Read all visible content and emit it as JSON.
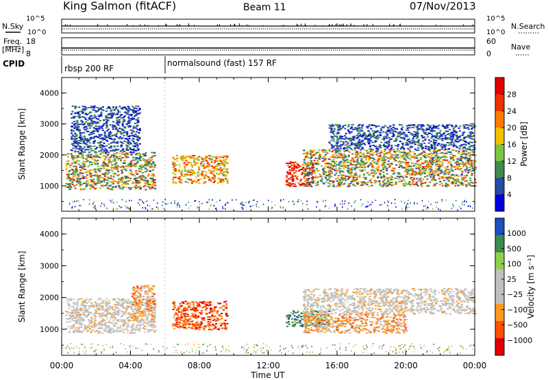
{
  "header": {
    "station": "King Salmon (fitACF)",
    "beam": "Beam 11",
    "date": "07/Nov/2013"
  },
  "status_panels": {
    "nsky_label": "N.Sky",
    "nsky_ticks": [
      "10^5",
      "10^0"
    ],
    "nsearch_label": "N.Search",
    "nsearch_ticks": [
      "10^5",
      "10^0"
    ],
    "freq_label": "Freq.",
    "freq_unit": "[MHz]",
    "freq_ticks": [
      "18",
      "8"
    ],
    "nave_label": "Nave",
    "nave_ticks": [
      "60",
      "0"
    ],
    "cpid_label": "CPID",
    "cpid_segments": [
      {
        "label": "rbsp 200 RF",
        "start_h": 0.0,
        "end_h": 6.0
      },
      {
        "label": "normalsound (fast) 157 RF",
        "start_h": 6.0,
        "end_h": 24.0
      }
    ]
  },
  "chart_data": [
    {
      "type": "heatmap",
      "panel": "power",
      "ylabel": "Slant Range [km]",
      "ylim": [
        180,
        4500
      ],
      "yticks": [
        1000,
        2000,
        3000,
        4000
      ],
      "xlim": [
        0,
        24
      ],
      "colorbar": {
        "label": "Power [dB]",
        "ticks": [
          "28",
          "24",
          "20",
          "16",
          "12",
          "8",
          "4"
        ],
        "colors": [
          "#e00000",
          "#f03000",
          "#ff7a00",
          "#f5c000",
          "#7fc442",
          "#3d8b4f",
          "#2a4aa0",
          "#0000e0"
        ]
      },
      "bands": [
        {
          "t0": 0.2,
          "t1": 5.4,
          "r0": 900,
          "r1": 2100,
          "level": "green-orange"
        },
        {
          "t0": 0.5,
          "t1": 4.5,
          "r0": 2100,
          "r1": 3600,
          "level": "blue-scatter"
        },
        {
          "t0": 6.4,
          "t1": 9.6,
          "r0": 1100,
          "r1": 2000,
          "level": "orange"
        },
        {
          "t0": 13.0,
          "t1": 14.6,
          "r0": 1000,
          "r1": 1800,
          "level": "red"
        },
        {
          "t0": 14.0,
          "t1": 24.0,
          "r0": 1000,
          "r1": 2200,
          "level": "green-orange"
        },
        {
          "t0": 15.5,
          "t1": 24.0,
          "r0": 2200,
          "r1": 3000,
          "level": "blue-scatter"
        }
      ]
    },
    {
      "type": "heatmap",
      "panel": "velocity",
      "ylabel": "Slant Range [km]",
      "ylim": [
        180,
        4500
      ],
      "yticks": [
        1000,
        2000,
        3000,
        4000
      ],
      "xlim": [
        0,
        24
      ],
      "colorbar": {
        "label": "Velocity [m s⁻¹]",
        "ticks": [
          "1000",
          "500",
          "100",
          "25",
          "−25",
          "−100",
          "−500",
          "−1000"
        ],
        "colors": [
          "#2050c0",
          "#3d8b4f",
          "#8fcf4f",
          "#c0c0c0",
          "#c0c0c0",
          "#ff9a20",
          "#ff5000",
          "#e00000"
        ]
      },
      "bands": [
        {
          "t0": 0.2,
          "t1": 5.4,
          "r0": 900,
          "r1": 2000,
          "level": "grey"
        },
        {
          "t0": 4.0,
          "t1": 5.4,
          "r0": 1300,
          "r1": 2400,
          "level": "orange"
        },
        {
          "t0": 6.4,
          "t1": 9.6,
          "r0": 1000,
          "r1": 1900,
          "level": "red-orange"
        },
        {
          "t0": 13.0,
          "t1": 15.5,
          "r0": 1100,
          "r1": 1600,
          "level": "green"
        },
        {
          "t0": 14.0,
          "t1": 20.0,
          "r0": 900,
          "r1": 1500,
          "level": "orange"
        },
        {
          "t0": 14.0,
          "t1": 24.0,
          "r0": 1500,
          "r1": 2300,
          "level": "grey"
        }
      ]
    }
  ],
  "x_axis": {
    "label": "Time UT",
    "ticks": [
      "00:00",
      "04:00",
      "08:00",
      "12:00",
      "16:00",
      "20:00",
      "00:00"
    ]
  }
}
